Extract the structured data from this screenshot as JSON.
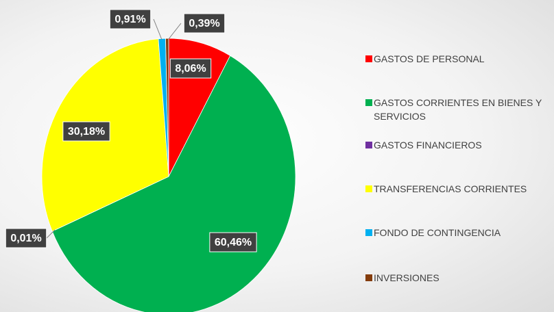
{
  "chart_data": {
    "type": "pie",
    "categories": [
      "GASTOS DE PERSONAL",
      "GASTOS CORRIENTES EN BIENES Y SERVICIOS",
      "GASTOS FINANCIEROS",
      "TRANSFERENCIAS CORRIENTES",
      "FONDO DE CONTINGENCIA",
      "INVERSIONES"
    ],
    "values": [
      8.06,
      60.46,
      0.01,
      30.18,
      0.91,
      0.39
    ],
    "value_labels": [
      "8,06%",
      "60,46%",
      "0,01%",
      "30,18%",
      "0,91%",
      "0,39%"
    ],
    "colors": [
      "#ff0000",
      "#00b050",
      "#7030a0",
      "#ffff00",
      "#00b0f0",
      "#843c0c"
    ],
    "legend": "right"
  }
}
